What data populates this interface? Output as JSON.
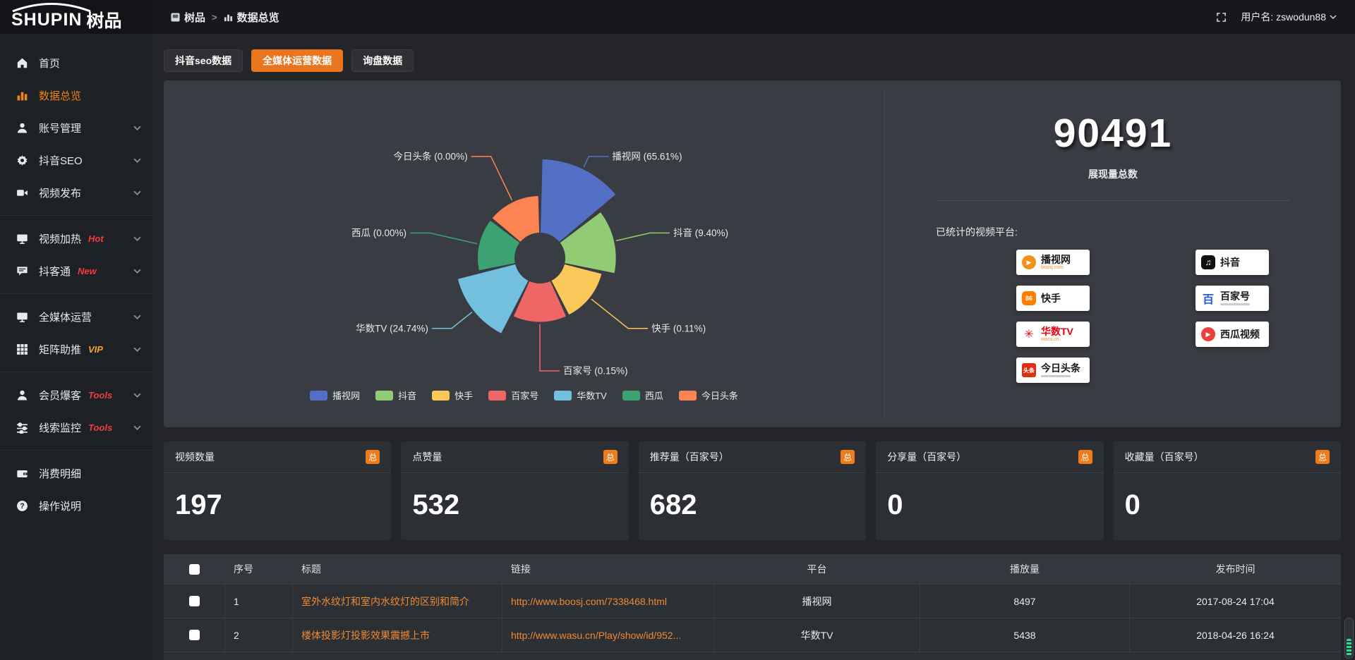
{
  "colors": {
    "accent": "#e9751e",
    "link": "#ef8a35",
    "hot_badge": "#f23c3c",
    "vip_badge": "#f5a623",
    "active_menu": "#f08519"
  },
  "topbar": {
    "logo_en": "SHUPIN",
    "logo_cn": "树品",
    "breadcrumb": [
      "树品",
      "数据总览"
    ],
    "username": "用户名: zswodun88"
  },
  "sidebar": {
    "items": [
      {
        "id": "home",
        "icon": "home",
        "label": "首页"
      },
      {
        "id": "overview",
        "icon": "chart",
        "label": "数据总览",
        "active": true
      },
      {
        "id": "account",
        "icon": "user",
        "label": "账号管理",
        "chevron": true
      },
      {
        "id": "douyin-seo",
        "icon": "gear",
        "label": "抖音SEO",
        "chevron": true
      },
      {
        "id": "publish",
        "icon": "video",
        "label": "视频发布",
        "chevron": true
      },
      {
        "divider": true
      },
      {
        "id": "heating",
        "icon": "monitor",
        "label": "视频加热",
        "badge": "Hot",
        "badge_color": "#f23c3c",
        "chevron": true
      },
      {
        "id": "douketong",
        "icon": "comment",
        "label": "抖客通",
        "badge": "New",
        "badge_color": "#f23c3c",
        "chevron": true
      },
      {
        "divider": true
      },
      {
        "id": "media",
        "icon": "monitor",
        "label": "全媒体运营",
        "chevron": true
      },
      {
        "id": "matrix",
        "icon": "grid",
        "label": "矩阵助推",
        "badge": "VIP",
        "badge_color": "#f5a623",
        "chevron": true
      },
      {
        "divider": true
      },
      {
        "id": "member",
        "icon": "user",
        "label": "会员爆客",
        "badge": "Tools",
        "badge_color": "#f23c3c",
        "chevron": true
      },
      {
        "id": "clue",
        "icon": "sliders",
        "label": "线索监控",
        "badge": "Tools",
        "badge_color": "#f23c3c",
        "chevron": true
      },
      {
        "divider": true
      },
      {
        "id": "consume",
        "icon": "wallet",
        "label": "消费明细"
      },
      {
        "id": "help",
        "icon": "question",
        "label": "操作说明"
      }
    ]
  },
  "tabs": [
    {
      "label": "抖音seo数据",
      "active": false
    },
    {
      "label": "全媒体运营数据",
      "active": true
    },
    {
      "label": "询盘数据",
      "active": false
    }
  ],
  "chart_data": {
    "type": "pie",
    "subtype": "nightingale-rose",
    "legend_position": "bottom",
    "label_format": "{name} ({percent}%)",
    "items": [
      {
        "name": "播视网",
        "percent": 65.61,
        "color": "#5470c6"
      },
      {
        "name": "抖音",
        "percent": 9.4,
        "color": "#91cc75"
      },
      {
        "name": "快手",
        "percent": 0.11,
        "color": "#fac858"
      },
      {
        "name": "百家号",
        "percent": 0.15,
        "color": "#ee6666"
      },
      {
        "name": "华数TV",
        "percent": 24.74,
        "color": "#73c0de"
      },
      {
        "name": "西瓜",
        "percent": 0.0,
        "color": "#3ba272"
      },
      {
        "name": "今日头条",
        "percent": 0.0,
        "color": "#fc8452"
      }
    ]
  },
  "summary": {
    "value": "90491",
    "label": "展现量总数",
    "platforms_label": "已统计的视频平台:",
    "platform_columns": [
      [
        {
          "type": "boosj",
          "name": "播视网",
          "sub": "boosj.com",
          "sub_color": "#f39019"
        },
        {
          "type": "kuaishou",
          "name": "快手"
        },
        {
          "type": "wasu",
          "name": "华数TV",
          "sub": "wasu.cn",
          "sub_color": "#f39019",
          "name_color": "#e60012"
        },
        {
          "type": "toutiao",
          "name": "今日头条",
          "sub_bar": true
        }
      ],
      [
        {
          "type": "douyin",
          "name": "抖音"
        },
        {
          "type": "baijia",
          "name": "百家号",
          "sub_bar": true
        },
        {
          "type": "xigua",
          "name": "西瓜视频"
        }
      ]
    ]
  },
  "stat_cards": [
    {
      "title": "视频数量",
      "badge": "总",
      "value": "197"
    },
    {
      "title": "点赞量",
      "badge": "总",
      "value": "532"
    },
    {
      "title": "推荐量（百家号）",
      "badge": "总",
      "value": "682"
    },
    {
      "title": "分享量（百家号）",
      "badge": "总",
      "value": "0"
    },
    {
      "title": "收藏量（百家号）",
      "badge": "总",
      "value": "0"
    }
  ],
  "table": {
    "headers": [
      "序号",
      "标题",
      "链接",
      "平台",
      "播放量",
      "发布时间"
    ],
    "rows": [
      {
        "no": "1",
        "title": "室外水纹灯和室内水纹灯的区别和简介",
        "link": "http://www.boosj.com/7338468.html",
        "platform": "播视网",
        "plays": "8497",
        "time": "2017-08-24 17:04"
      },
      {
        "no": "2",
        "title": "楼体投影灯投影效果震撼上市",
        "link": "http://www.wasu.cn/Play/show/id/952...",
        "platform": "华数TV",
        "plays": "5438",
        "time": "2018-04-26 16:24"
      }
    ]
  }
}
